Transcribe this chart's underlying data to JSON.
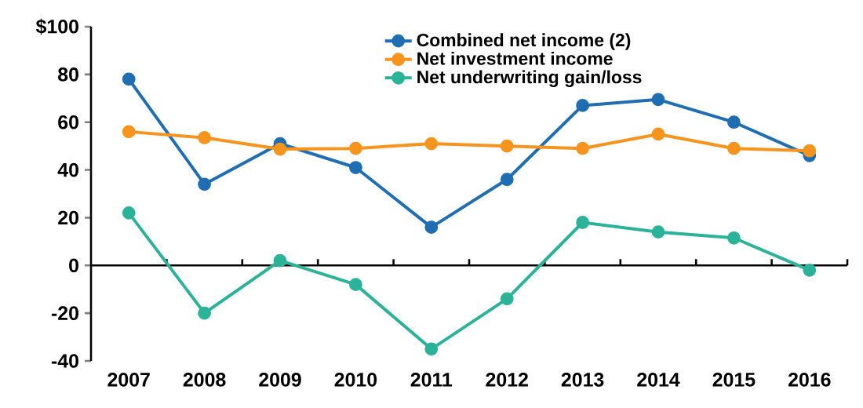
{
  "chart_data": {
    "type": "line",
    "categories": [
      "2007",
      "2008",
      "2009",
      "2010",
      "2011",
      "2012",
      "2013",
      "2014",
      "2015",
      "2016"
    ],
    "series": [
      {
        "name": "Combined net income (2)",
        "color": "#1f6db3",
        "values": [
          78,
          34,
          51,
          41,
          16,
          36,
          67,
          69.5,
          60,
          46
        ]
      },
      {
        "name": "Net investment income",
        "color": "#f7941d",
        "values": [
          56,
          53.5,
          48.7,
          49,
          51,
          50,
          49,
          55,
          49,
          48
        ]
      },
      {
        "name": "Net underwriting gain/loss",
        "color": "#2bb39a",
        "values": [
          22,
          -20,
          2,
          -8,
          -35,
          -14,
          18,
          14,
          11.5,
          -2
        ]
      }
    ],
    "ylim": [
      -40,
      100
    ],
    "yticks": [
      -40,
      -20,
      0,
      20,
      40,
      60,
      80,
      {
        "value": 100,
        "label": "$100"
      }
    ],
    "marker": "circle",
    "line_style": "solid",
    "legend": "top"
  }
}
